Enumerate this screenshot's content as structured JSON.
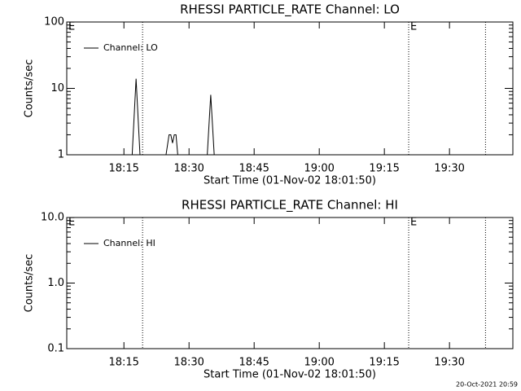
{
  "chart_data": [
    {
      "type": "line",
      "title": "RHESSI PARTICLE_RATE Channel: LO",
      "xlabel": "Start Time (01-Nov-02 18:01:50)",
      "ylabel": "Counts/sec",
      "log_y": true,
      "legend": "top-left",
      "xlim": [
        1.83,
        104.6
      ],
      "xticks": [
        {
          "value": 15,
          "label": "18:15"
        },
        {
          "value": 30,
          "label": "18:30"
        },
        {
          "value": 45,
          "label": "18:45"
        },
        {
          "value": 60,
          "label": "19:00"
        },
        {
          "value": 75,
          "label": "19:15"
        },
        {
          "value": 90,
          "label": "19:30"
        }
      ],
      "ylim": [
        1,
        100
      ],
      "yticks": [
        1,
        10,
        100
      ],
      "vlines": [
        19.3,
        80.6,
        98.3
      ],
      "annotations": [
        {
          "text": "E",
          "x": 1.83
        },
        {
          "text": "E",
          "x": 80.6
        }
      ],
      "series": [
        {
          "name": "Channel: LO",
          "color": "#000000",
          "x": [
            1.83,
            16.9,
            17.8,
            18.7,
            24.7,
            25.4,
            25.8,
            26.2,
            26.6,
            27.0,
            27.4,
            34.2,
            35.0,
            35.8,
            104.6
          ],
          "values": [
            1,
            1,
            14,
            1,
            1,
            2,
            2,
            1.5,
            2,
            2,
            1,
            1,
            8,
            1,
            1
          ]
        }
      ]
    },
    {
      "type": "line",
      "title": "RHESSI PARTICLE_RATE Channel: HI",
      "xlabel": "Start Time (01-Nov-02 18:01:50)",
      "ylabel": "Counts/sec",
      "log_y": true,
      "legend": "top-left",
      "xlim": [
        1.83,
        104.6
      ],
      "xticks": [
        {
          "value": 15,
          "label": "18:15"
        },
        {
          "value": 30,
          "label": "18:30"
        },
        {
          "value": 45,
          "label": "18:45"
        },
        {
          "value": 60,
          "label": "19:00"
        },
        {
          "value": 75,
          "label": "19:15"
        },
        {
          "value": 90,
          "label": "19:30"
        }
      ],
      "ylim": [
        0.1,
        10
      ],
      "yticks": [
        0.1,
        {
          "value": 1,
          "label": "1.0"
        },
        {
          "value": 10,
          "label": "10.0"
        }
      ],
      "vlines": [
        19.3,
        80.6,
        98.3
      ],
      "annotations": [
        {
          "text": "E",
          "x": 1.83
        },
        {
          "text": "E",
          "x": 80.6
        }
      ],
      "series": [
        {
          "name": "Channel: HI",
          "color": "#000000",
          "x": [],
          "values": []
        }
      ]
    }
  ],
  "footer": "20-Oct-2021 20:59"
}
